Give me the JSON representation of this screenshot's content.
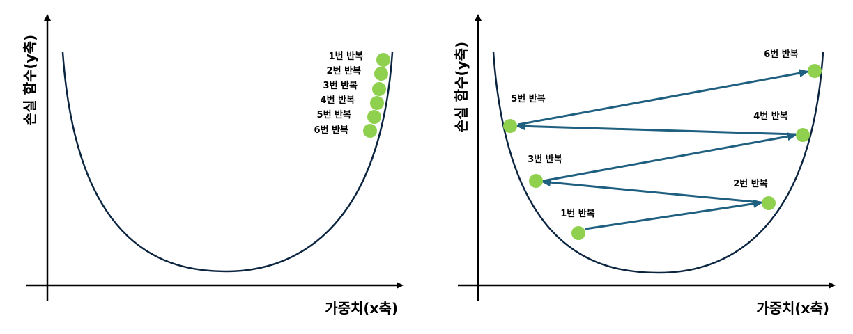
{
  "colors": {
    "axis": "#000000",
    "curve": "#0b2540",
    "point": "#8fd14f",
    "arrow": "#1f5f7f"
  },
  "panels": [
    {
      "id": "left",
      "x_axis_label": "가중치(x축)",
      "y_axis_label": "손실 함수(y축)",
      "iterations": [
        {
          "label": "1번 반복"
        },
        {
          "label": "2번 반복"
        },
        {
          "label": "3번 반복"
        },
        {
          "label": "4번 반복"
        },
        {
          "label": "5번 반복"
        },
        {
          "label": "6번 반복"
        }
      ]
    },
    {
      "id": "right",
      "x_axis_label": "가중치(x축)",
      "y_axis_label": "손실 함수(y축)",
      "iterations": [
        {
          "label": "1번 반복"
        },
        {
          "label": "2번 반복"
        },
        {
          "label": "3번 반복"
        },
        {
          "label": "4번 반복"
        },
        {
          "label": "5번 반복"
        },
        {
          "label": "6번 반복"
        }
      ]
    }
  ]
}
